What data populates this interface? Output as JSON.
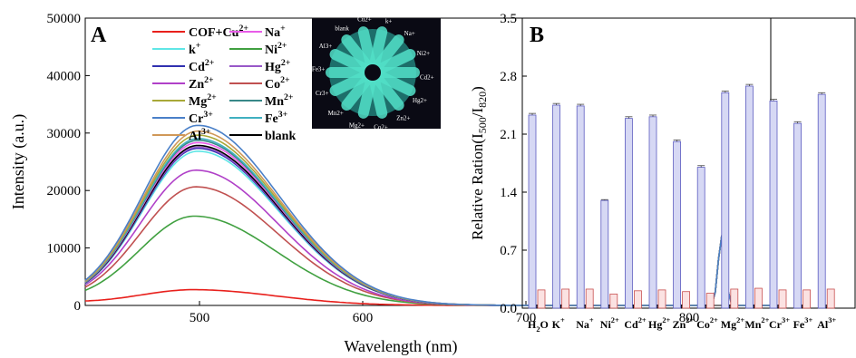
{
  "chart_data": [
    {
      "panel": "A",
      "type": "line",
      "xlabel": "Wavelength (nm)",
      "ylabel": "Intensity (a.u.)",
      "xlim": [
        430,
        850
      ],
      "ylim": [
        0,
        50000
      ],
      "xticks": [
        500,
        600,
        700,
        800
      ],
      "yticks": [
        0,
        10000,
        20000,
        30000,
        40000,
        50000
      ],
      "legend_position": "top-center, two columns",
      "legend_col1": [
        {
          "name": "COF+Cu2+",
          "base": "COF+Cu",
          "sup": "2+",
          "color": "#e8201c"
        },
        {
          "name": "k+",
          "base": "k",
          "sup": "+",
          "color": "#5fe6e6"
        },
        {
          "name": "Cd2+",
          "base": "Cd",
          "sup": "2+",
          "color": "#3030b0"
        },
        {
          "name": "Zn2+",
          "base": "Zn",
          "sup": "2+",
          "color": "#b040c8"
        },
        {
          "name": "Mg2+",
          "base": "Mg",
          "sup": "2+",
          "color": "#a8a838"
        },
        {
          "name": "Cr3+",
          "base": "Cr",
          "sup": "3+",
          "color": "#4a80c8"
        },
        {
          "name": "Al3+",
          "base": "Al",
          "sup": "3+",
          "color": "#d09858"
        }
      ],
      "legend_col2": [
        {
          "name": "Na+",
          "base": "Na",
          "sup": "+",
          "color": "#e85ce8"
        },
        {
          "name": "Ni2+",
          "base": "Ni",
          "sup": "2+",
          "color": "#40a040"
        },
        {
          "name": "Hg2+",
          "base": "Hg",
          "sup": "2+",
          "color": "#9858c8"
        },
        {
          "name": "Co2+",
          "base": "Co",
          "sup": "2+",
          "color": "#c05050"
        },
        {
          "name": "Mn2+",
          "base": "Mn",
          "sup": "2+",
          "color": "#388888"
        },
        {
          "name": "Fe3+",
          "base": "Fe",
          "sup": "3+",
          "color": "#40b0c0"
        },
        {
          "name": "blank",
          "base": "blank",
          "sup": "",
          "color": "#000000"
        }
      ],
      "series": [
        {
          "name": "COF+Cu2+",
          "peak_x": 497,
          "peak_y": 2700,
          "color": "#e8201c"
        },
        {
          "name": "Ni2+",
          "peak_x": 497,
          "peak_y": 15500,
          "color": "#40a040"
        },
        {
          "name": "Co2+",
          "peak_x": 498,
          "peak_y": 20600,
          "color": "#c05050"
        },
        {
          "name": "Zn2+",
          "peak_x": 498,
          "peak_y": 23500,
          "color": "#b040c8"
        },
        {
          "name": "k+",
          "peak_x": 499,
          "peak_y": 26800,
          "color": "#5fe6e6"
        },
        {
          "name": "Cd2+",
          "peak_x": 499,
          "peak_y": 27300,
          "color": "#3030b0"
        },
        {
          "name": "Hg2+",
          "peak_x": 499,
          "peak_y": 27500,
          "color": "#9858c8"
        },
        {
          "name": "blank",
          "peak_x": 499,
          "peak_y": 27800,
          "color": "#000000"
        },
        {
          "name": "Na+",
          "peak_x": 499,
          "peak_y": 28300,
          "color": "#e85ce8"
        },
        {
          "name": "Mn2+",
          "peak_x": 499,
          "peak_y": 28700,
          "color": "#388888"
        },
        {
          "name": "Fe3+",
          "peak_x": 499,
          "peak_y": 29000,
          "color": "#40b0c0"
        },
        {
          "name": "Mg2+",
          "peak_x": 499,
          "peak_y": 29600,
          "color": "#a8a838"
        },
        {
          "name": "Al3+",
          "peak_x": 499,
          "peak_y": 30300,
          "color": "#d09858"
        },
        {
          "name": "Cr3+",
          "peak_x": 499,
          "peak_y": 31300,
          "color": "#4a80c8"
        }
      ],
      "secondary_peak": {
        "x": 820,
        "y": 12200
      }
    },
    {
      "panel": "B",
      "type": "bar",
      "ylabel": "Relative Ration(I500/I820)",
      "ylabel_parts": {
        "base": "Relative Ration(I",
        "sub1": "500",
        "mid": "/I",
        "sub2": "820",
        "end": ")"
      },
      "ylim": [
        0.0,
        3.5
      ],
      "yticks": [
        "0.0",
        "0.7",
        "1.4",
        "2.1",
        "2.8",
        "3.5"
      ],
      "categories": [
        {
          "label": "H2O",
          "base": "H",
          "sub": "2",
          "tail": "O",
          "sup": ""
        },
        {
          "label": "K+",
          "base": "K",
          "sub": "",
          "tail": "",
          "sup": "+"
        },
        {
          "label": "Na+",
          "base": "Na",
          "sub": "",
          "tail": "",
          "sup": "+"
        },
        {
          "label": "Ni2+",
          "base": "Ni",
          "sub": "",
          "tail": "",
          "sup": "2+"
        },
        {
          "label": "Cd2+",
          "base": "Cd",
          "sub": "",
          "tail": "",
          "sup": "2+"
        },
        {
          "label": "Hg2+",
          "base": "Hg",
          "sub": "",
          "tail": "",
          "sup": "2+"
        },
        {
          "label": "Zn2+",
          "base": "Zn",
          "sub": "",
          "tail": "",
          "sup": "2+"
        },
        {
          "label": "Co2+",
          "base": "Co",
          "sub": "",
          "tail": "",
          "sup": "2+"
        },
        {
          "label": "Mg2+",
          "base": "Mg",
          "sub": "",
          "tail": "",
          "sup": "2+"
        },
        {
          "label": "Mn2+",
          "base": "Mn",
          "sub": "",
          "tail": "",
          "sup": "2+"
        },
        {
          "label": "Cr3+",
          "base": "Cr",
          "sub": "",
          "tail": "",
          "sup": "3+"
        },
        {
          "label": "Fe3+",
          "base": "Fe",
          "sub": "",
          "tail": "",
          "sup": "3+"
        },
        {
          "label": "Al3+",
          "base": "Al",
          "sub": "",
          "tail": "",
          "sup": "3+"
        }
      ],
      "series": [
        {
          "values": [
            2.33,
            2.45,
            2.44,
            1.3,
            2.29,
            2.31,
            2.01,
            1.7,
            2.6,
            2.68,
            2.5,
            2.23,
            2.58
          ],
          "fill": "#d6d8f4",
          "stroke": "#5c5cc0"
        },
        {
          "values": [
            0.22,
            0.23,
            0.23,
            0.17,
            0.21,
            0.22,
            0.2,
            0.18,
            0.23,
            0.24,
            0.22,
            0.22,
            0.23
          ],
          "fill": "#fbe2e2",
          "stroke": "#c85050"
        }
      ],
      "error": [
        0.02,
        0.02,
        0.02,
        0.01,
        0.02,
        0.02,
        0.02,
        0.02,
        0.02,
        0.02,
        0.02,
        0.02,
        0.02
      ]
    }
  ],
  "panels": {
    "a_letter": "A",
    "b_letter": "B"
  },
  "inset": {
    "description_labels": [
      "blank",
      "Cu2+",
      "k+",
      "Na+",
      "Ni2+",
      "Cd2+",
      "Hg2+",
      "Zn2+",
      "Co2+",
      "Mg2+",
      "Mn2+",
      "Cr3+",
      "Fe3+",
      "Al3+"
    ]
  }
}
